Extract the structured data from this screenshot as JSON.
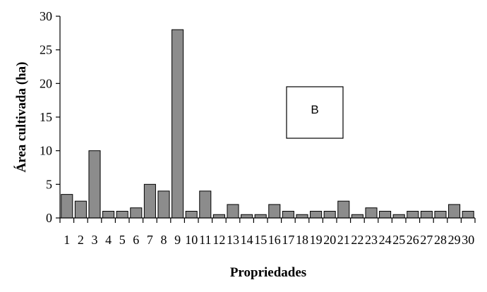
{
  "chart_data": {
    "type": "bar",
    "categories": [
      "1",
      "2",
      "3",
      "4",
      "5",
      "6",
      "7",
      "8",
      "9",
      "10",
      "11",
      "12",
      "13",
      "14",
      "15",
      "16",
      "17",
      "18",
      "19",
      "20",
      "21",
      "22",
      "23",
      "24",
      "25",
      "26",
      "27",
      "28",
      "29",
      "30"
    ],
    "values": [
      3.5,
      2.5,
      10,
      1,
      1,
      1.5,
      5,
      4,
      28,
      1,
      4,
      0.5,
      2,
      0.5,
      0.5,
      2,
      1,
      0.5,
      1,
      1,
      2.5,
      0.5,
      1.5,
      1,
      0.5,
      1,
      1,
      1,
      2,
      1
    ],
    "yticks": [
      "0",
      "5",
      "10",
      "15",
      "20",
      "25",
      "30"
    ],
    "ylim": [
      0,
      30
    ],
    "xlabel": "Propriedades",
    "ylabel": "Área cultivada (ha)",
    "annotation": "B",
    "bar_color": "#8c8c8c",
    "grid": false
  }
}
